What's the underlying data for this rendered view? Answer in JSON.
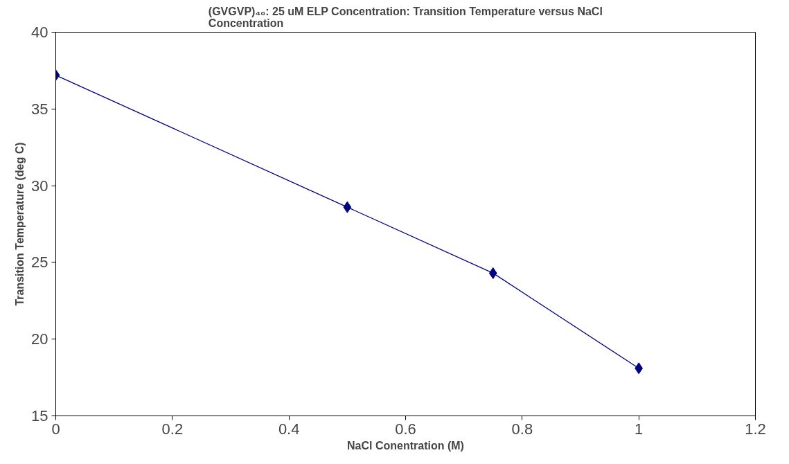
{
  "chart_data": {
    "type": "line",
    "title": "(GVGVP)₄₀: 25 uM ELP Concentration: Transition Temperature versus NaCl Concentration",
    "xlabel": "NaCl Conentration (M)",
    "ylabel": "Transition Temperature (deg C)",
    "x": [
      0,
      0.5,
      0.75,
      1
    ],
    "series": [
      {
        "color": "#000080",
        "values": [
          37.2,
          28.6,
          24.3,
          18.1
        ]
      }
    ],
    "xlim": [
      0,
      1.2
    ],
    "xticks": [
      0,
      0.2,
      0.4,
      0.6,
      0.8,
      1,
      1.2
    ],
    "ylim": [
      15,
      40
    ],
    "yticks": [
      15,
      20,
      25,
      30,
      35,
      40
    ],
    "marker": "diamond",
    "line_style": "solid",
    "grid": false
  }
}
